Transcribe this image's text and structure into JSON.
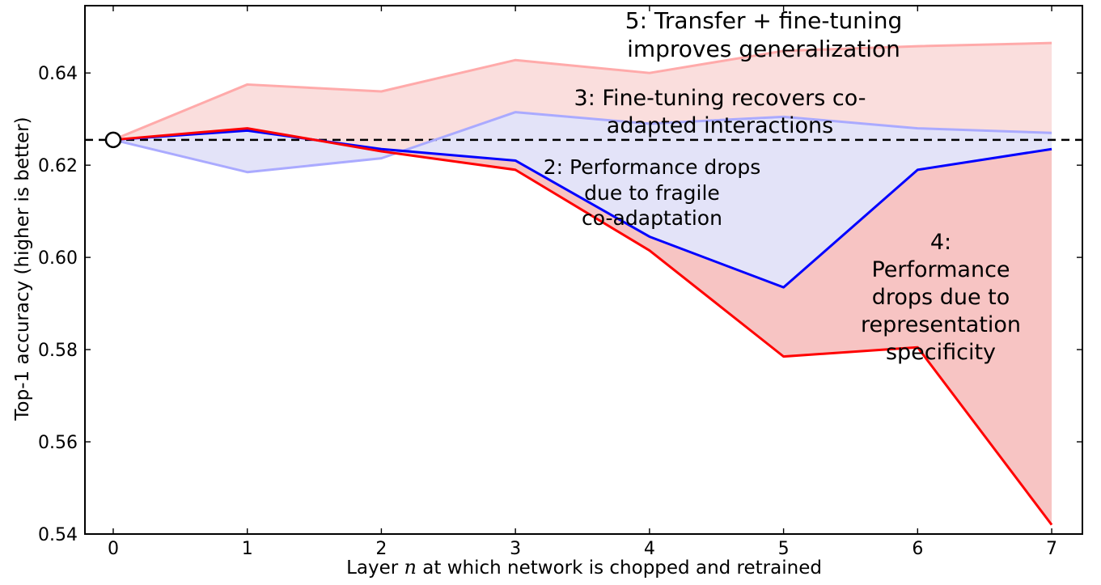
{
  "figure": {
    "background": "#ffffff"
  },
  "chart_data": {
    "type": "line",
    "title": "",
    "xlabel": {
      "prefix": "Layer ",
      "var": "n",
      "suffix": " at which network is chopped and retrained"
    },
    "ylabel": "Top-1 accuracy (higher is better)",
    "x": [
      0,
      1,
      2,
      3,
      4,
      5,
      6,
      7
    ],
    "xlim": [
      -0.211,
      7.229
    ],
    "ylim": [
      0.54,
      0.6546
    ],
    "x_ticks": [
      {
        "v": 0,
        "label": "0"
      },
      {
        "v": 1,
        "label": "1"
      },
      {
        "v": 2,
        "label": "2"
      },
      {
        "v": 3,
        "label": "3"
      },
      {
        "v": 4,
        "label": "4"
      },
      {
        "v": 5,
        "label": "5"
      },
      {
        "v": 6,
        "label": "6"
      },
      {
        "v": 7,
        "label": "7"
      }
    ],
    "y_ticks": [
      {
        "v": 0.54,
        "label": "0.54"
      },
      {
        "v": 0.56,
        "label": "0.56"
      },
      {
        "v": 0.58,
        "label": "0.58"
      },
      {
        "v": 0.6,
        "label": "0.60"
      },
      {
        "v": 0.62,
        "label": "0.62"
      },
      {
        "v": 0.64,
        "label": "0.64"
      }
    ],
    "baseline": {
      "value": 0.6255,
      "marker_x": 0,
      "color": "#000000",
      "style": "dashed"
    },
    "series": [
      {
        "id": "transfer-plus-finetuning",
        "annotation_ref": "5",
        "color": "#ffaaaa",
        "values": [
          0.6255,
          0.6375,
          0.636,
          0.6428,
          0.64,
          0.6448,
          0.6458,
          0.6465
        ]
      },
      {
        "id": "finetuning-recovery",
        "annotation_ref": "3",
        "color": "#aaaaff",
        "values": [
          0.6255,
          0.6185,
          0.6215,
          0.6315,
          0.629,
          0.6305,
          0.628,
          0.627
        ]
      },
      {
        "id": "fragile-coadaptation",
        "annotation_ref": "2",
        "color": "#0000ff",
        "values": [
          0.6255,
          0.6275,
          0.6235,
          0.621,
          0.6045,
          0.5935,
          0.619,
          0.6235
        ]
      },
      {
        "id": "representation-specificity",
        "annotation_ref": "4",
        "color": "#ff0000",
        "values": [
          0.6255,
          0.628,
          0.623,
          0.619,
          0.6015,
          0.5785,
          0.5805,
          0.542
        ]
      }
    ],
    "fills": [
      {
        "between": [
          0,
          1
        ],
        "color": "#fadedd",
        "region": "5"
      },
      {
        "between": [
          1,
          2
        ],
        "color": "#e3e3f8",
        "region": "2"
      },
      {
        "between": [
          2,
          3
        ],
        "color": "#f7c4c3",
        "region": "4"
      }
    ],
    "annotations": {
      "a5": "5: Transfer + fine-tuning improves generalization",
      "a3": "3: Fine-tuning recovers co-adapted interactions",
      "a2": "2: Performance drops\ndue to fragile\nco-adaptation",
      "a4": "4: Performance\ndrops due to\nrepresentation\nspecificity"
    },
    "grid": false,
    "legend": "none"
  }
}
